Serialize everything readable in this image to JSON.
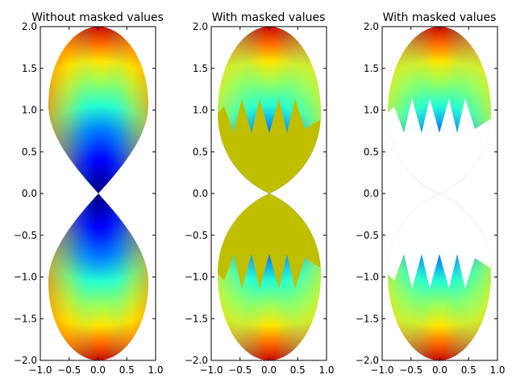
{
  "chart_data": [
    {
      "type": "heatmap",
      "plot_kind": "pseudocolor mesh",
      "title": "Without masked values",
      "xlim": [
        -1.0,
        1.0
      ],
      "ylim": [
        -2.0,
        2.0
      ],
      "xticks": [
        "−1.0",
        "−0.5",
        "0.0",
        "0.5",
        "1.0"
      ],
      "yticks": [
        "2.0",
        "1.5",
        "1.0",
        "0.5",
        "0.0",
        "−0.5",
        "−1.0",
        "−1.5",
        "−2.0"
      ],
      "colormap": "jet",
      "masked_region": "none",
      "masked_color": null,
      "grid": false
    },
    {
      "type": "heatmap",
      "plot_kind": "pseudocolor mesh",
      "title": "With masked values",
      "xlim": [
        -1.0,
        1.0
      ],
      "ylim": [
        -2.0,
        2.0
      ],
      "xticks": [
        "−1.0",
        "−0.5",
        "0.0",
        "0.5",
        "1.0"
      ],
      "yticks": [
        "2.0",
        "1.5",
        "1.0",
        "0.5",
        "0.0",
        "−0.5",
        "−1.0",
        "−1.5",
        "−2.0"
      ],
      "colormap": "jet",
      "masked_region": "|y| < 1 (ragged edge)",
      "masked_color": "#bfbf00",
      "grid": false
    },
    {
      "type": "heatmap",
      "plot_kind": "pseudocolor mesh",
      "title": "With masked values",
      "xlim": [
        -1.0,
        1.0
      ],
      "ylim": [
        -2.0,
        2.0
      ],
      "xticks": [
        "−1.0",
        "−0.5",
        "0.0",
        "0.5",
        "1.0"
      ],
      "yticks": [
        "2.0",
        "1.5",
        "1.0",
        "0.5",
        "0.0",
        "−0.5",
        "−1.0",
        "−1.5",
        "−2.0"
      ],
      "colormap": "jet",
      "masked_region": "|y| < 1 (ragged edge)",
      "masked_color": "#ffffff",
      "grid": false
    }
  ]
}
